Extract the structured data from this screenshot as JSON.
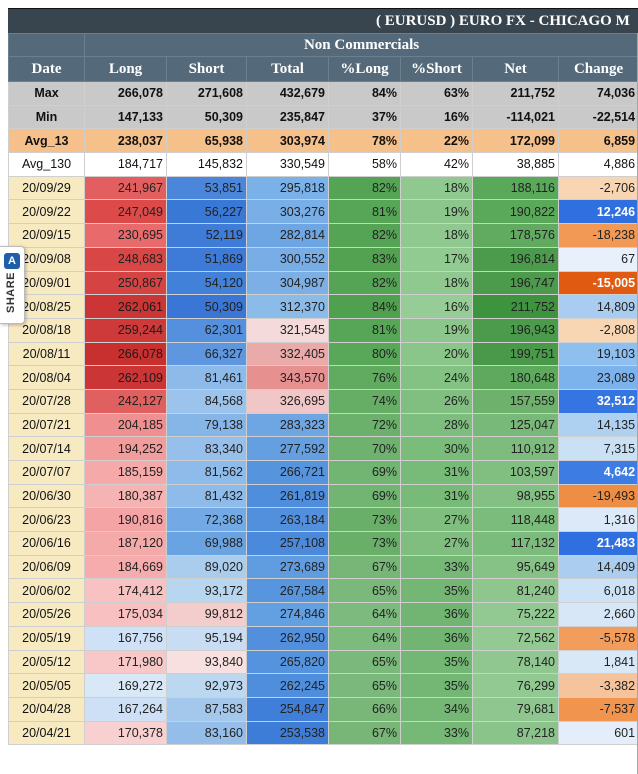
{
  "title": "( EURUSD ) EURO FX - CHICAGO M",
  "group_header": "Non Commercials",
  "columns": [
    "Date",
    "Long",
    "Short",
    "Total",
    "%Long",
    "%Short",
    "Net",
    "Change"
  ],
  "share": {
    "label": "SHARE",
    "logo": "A"
  },
  "summary_rows": [
    {
      "label": "Max",
      "cells": [
        "266,078",
        "271,608",
        "432,679",
        "84%",
        "63%",
        "211,752",
        "74,036"
      ]
    },
    {
      "label": "Min",
      "cells": [
        "147,133",
        "50,309",
        "235,847",
        "37%",
        "16%",
        "-114,021",
        "-22,514"
      ]
    },
    {
      "label": "Avg_13",
      "cells": [
        "238,037",
        "65,938",
        "303,974",
        "78%",
        "22%",
        "172,099",
        "6,859"
      ]
    },
    {
      "label": "Avg_130",
      "cells": [
        "184,717",
        "145,832",
        "330,549",
        "58%",
        "42%",
        "38,885",
        "4,886"
      ]
    }
  ],
  "rows": [
    {
      "date": "20/09/29",
      "cells": [
        "241,967",
        "53,851",
        "295,818",
        "82%",
        "18%",
        "188,116",
        "-2,706"
      ],
      "colors": [
        "#e35f5f",
        "#4b86db",
        "#7ab1e8",
        "#55a455",
        "#8fc98f",
        "#5aa85a",
        "#f8d6b3"
      ],
      "bold": [
        false,
        false,
        false,
        false,
        false,
        false,
        false
      ]
    },
    {
      "date": "20/09/22",
      "cells": [
        "247,049",
        "56,227",
        "303,276",
        "81%",
        "19%",
        "190,822",
        "12,246"
      ],
      "colors": [
        "#dc4a4a",
        "#3a78d6",
        "#7aaee6",
        "#57a657",
        "#8cc68c",
        "#5aa85a",
        "#2f6fe0"
      ],
      "bold": [
        false,
        false,
        false,
        false,
        false,
        false,
        true
      ]
    },
    {
      "date": "20/09/15",
      "cells": [
        "230,695",
        "52,119",
        "282,814",
        "82%",
        "18%",
        "178,576",
        "-18,238"
      ],
      "colors": [
        "#e86a6a",
        "#3f7cd8",
        "#6ea6e3",
        "#55a455",
        "#8fc98f",
        "#60ab60",
        "#f29a55"
      ],
      "bold": [
        false,
        false,
        false,
        false,
        false,
        false,
        false
      ]
    },
    {
      "date": "20/09/08",
      "cells": [
        "248,683",
        "51,869",
        "300,552",
        "83%",
        "17%",
        "196,814",
        "67"
      ],
      "colors": [
        "#d94646",
        "#3e7bd8",
        "#78ade6",
        "#52a252",
        "#92cb92",
        "#4c9b4c",
        "#e8f1fb"
      ],
      "bold": [
        false,
        false,
        false,
        false,
        false,
        false,
        false
      ]
    },
    {
      "date": "20/09/01",
      "cells": [
        "250,867",
        "54,120",
        "304,987",
        "82%",
        "18%",
        "196,747",
        "-15,005"
      ],
      "colors": [
        "#d64343",
        "#4281d9",
        "#7cafe6",
        "#55a455",
        "#8fc98f",
        "#4c9b4c",
        "#e05a12"
      ],
      "bold": [
        false,
        false,
        false,
        false,
        false,
        false,
        true
      ]
    },
    {
      "date": "20/08/25",
      "cells": [
        "262,061",
        "50,309",
        "312,370",
        "84%",
        "16%",
        "211,752",
        "14,809"
      ],
      "colors": [
        "#cc3535",
        "#3a76d5",
        "#8abbe9",
        "#4fa04f",
        "#96cd96",
        "#3e943e",
        "#a9cdf0"
      ],
      "bold": [
        false,
        false,
        false,
        false,
        false,
        false,
        false
      ]
    },
    {
      "date": "20/08/18",
      "cells": [
        "259,244",
        "62,301",
        "321,545",
        "81%",
        "19%",
        "196,943",
        "-2,808"
      ],
      "colors": [
        "#ce3a3a",
        "#5590de",
        "#f4dada",
        "#57a657",
        "#8cc68c",
        "#4c9b4c",
        "#f8d6b3"
      ],
      "bold": [
        false,
        false,
        false,
        false,
        false,
        false,
        false
      ]
    },
    {
      "date": "20/08/11",
      "cells": [
        "266,078",
        "66,327",
        "332,405",
        "80%",
        "20%",
        "199,751",
        "19,103"
      ],
      "colors": [
        "#c82f2f",
        "#5e97df",
        "#eaaaaa",
        "#59a859",
        "#8ac58a",
        "#4a994a",
        "#8fbfee"
      ],
      "bold": [
        false,
        false,
        false,
        false,
        false,
        false,
        false
      ]
    },
    {
      "date": "20/08/04",
      "cells": [
        "262,109",
        "81,461",
        "343,570",
        "76%",
        "24%",
        "180,648",
        "23,089"
      ],
      "colors": [
        "#cc3535",
        "#8ebae9",
        "#e69090",
        "#60ab60",
        "#84c284",
        "#5ea95e",
        "#7cb3ec"
      ],
      "bold": [
        false,
        false,
        false,
        false,
        false,
        false,
        false
      ]
    },
    {
      "date": "20/07/28",
      "cells": [
        "242,127",
        "84,568",
        "326,695",
        "74%",
        "26%",
        "157,559",
        "32,512"
      ],
      "colors": [
        "#e06060",
        "#9cc3ec",
        "#f0c6c6",
        "#66ae66",
        "#80bf80",
        "#6db16d",
        "#3575e2"
      ],
      "bold": [
        false,
        false,
        false,
        false,
        false,
        false,
        true
      ]
    },
    {
      "date": "20/07/21",
      "cells": [
        "204,185",
        "79,138",
        "283,323",
        "72%",
        "28%",
        "125,047",
        "14,135"
      ],
      "colors": [
        "#ef8f8f",
        "#86b5e8",
        "#6ea6e3",
        "#6bb06b",
        "#7dbd7d",
        "#78b878",
        "#aed0f1"
      ],
      "bold": [
        false,
        false,
        false,
        false,
        false,
        false,
        false
      ]
    },
    {
      "date": "20/07/14",
      "cells": [
        "194,252",
        "83,340",
        "277,592",
        "70%",
        "30%",
        "110,912",
        "7,315"
      ],
      "colors": [
        "#f39c9c",
        "#96bfeb",
        "#64a0e1",
        "#6fb26f",
        "#7abc7a",
        "#7ebc7e",
        "#c9e0f5"
      ],
      "bold": [
        false,
        false,
        false,
        false,
        false,
        false,
        false
      ]
    },
    {
      "date": "20/07/07",
      "cells": [
        "185,159",
        "81,562",
        "266,721",
        "69%",
        "31%",
        "103,597",
        "4,642"
      ],
      "colors": [
        "#f5a9a9",
        "#8fbbea",
        "#5694de",
        "#72b472",
        "#78ba78",
        "#81bf81",
        "#3c7ce3"
      ],
      "bold": [
        false,
        false,
        false,
        false,
        false,
        false,
        true
      ]
    },
    {
      "date": "20/06/30",
      "cells": [
        "180,387",
        "81,432",
        "261,819",
        "69%",
        "31%",
        "98,955",
        "-19,493"
      ],
      "colors": [
        "#f6b3b3",
        "#8fbbea",
        "#4f8edc",
        "#72b472",
        "#78ba78",
        "#84c084",
        "#ee8e45"
      ],
      "bold": [
        false,
        false,
        false,
        false,
        false,
        false,
        false
      ]
    },
    {
      "date": "20/06/23",
      "cells": [
        "190,816",
        "72,368",
        "263,184",
        "73%",
        "27%",
        "118,448",
        "1,316"
      ],
      "colors": [
        "#f4a4a4",
        "#73a9e4",
        "#5290dd",
        "#69af69",
        "#7fbe7f",
        "#7bbb7b",
        "#dbe9f8"
      ],
      "bold": [
        false,
        false,
        false,
        false,
        false,
        false,
        false
      ]
    },
    {
      "date": "20/06/16",
      "cells": [
        "187,120",
        "69,988",
        "257,108",
        "73%",
        "27%",
        "117,132",
        "21,483"
      ],
      "colors": [
        "#f5aaaa",
        "#6aa3e2",
        "#4a89db",
        "#69af69",
        "#7fbe7f",
        "#7bbb7b",
        "#2f6fe0"
      ],
      "bold": [
        false,
        false,
        false,
        false,
        false,
        false,
        true
      ]
    },
    {
      "date": "20/06/09",
      "cells": [
        "184,669",
        "89,020",
        "273,689",
        "67%",
        "33%",
        "95,649",
        "14,409"
      ],
      "colors": [
        "#f6acac",
        "#aacded",
        "#609ce0",
        "#77b677",
        "#76b876",
        "#86c186",
        "#abcef0"
      ],
      "bold": [
        false,
        false,
        false,
        false,
        false,
        false,
        false
      ]
    },
    {
      "date": "20/06/02",
      "cells": [
        "174,412",
        "93,172",
        "267,584",
        "65%",
        "35%",
        "81,240",
        "6,018"
      ],
      "colors": [
        "#f8c2c2",
        "#b8d6f0",
        "#5795de",
        "#7bb87b",
        "#74b674",
        "#8ec68e",
        "#cde2f6"
      ],
      "bold": [
        false,
        false,
        false,
        false,
        false,
        false,
        false
      ]
    },
    {
      "date": "20/05/26",
      "cells": [
        "175,034",
        "99,812",
        "274,846",
        "64%",
        "36%",
        "75,222",
        "2,660"
      ],
      "colors": [
        "#f8c0c0",
        "#f3cccc",
        "#62a0e1",
        "#7dba7d",
        "#72b572",
        "#92c892",
        "#d7e7f7"
      ],
      "bold": [
        false,
        false,
        false,
        false,
        false,
        false,
        false
      ]
    },
    {
      "date": "20/05/19",
      "cells": [
        "167,756",
        "95,194",
        "262,950",
        "64%",
        "36%",
        "72,562",
        "-5,578"
      ],
      "colors": [
        "#cfe1f6",
        "#c8dcf3",
        "#5290dd",
        "#7dba7d",
        "#72b572",
        "#94c994",
        "#f29d5c"
      ],
      "bold": [
        false,
        false,
        false,
        false,
        false,
        false,
        false
      ]
    },
    {
      "date": "20/05/12",
      "cells": [
        "171,980",
        "93,840",
        "265,820",
        "65%",
        "35%",
        "78,140",
        "1,841"
      ],
      "colors": [
        "#f8c8c8",
        "#f8e0e0",
        "#5693de",
        "#7bb87b",
        "#74b674",
        "#90c790",
        "#d9e8f7"
      ],
      "bold": [
        false,
        false,
        false,
        false,
        false,
        false,
        false
      ]
    },
    {
      "date": "20/05/05",
      "cells": [
        "169,272",
        "92,973",
        "262,245",
        "65%",
        "35%",
        "76,299",
        "-3,382"
      ],
      "colors": [
        "#d9e8f7",
        "#bcd8f1",
        "#4f8edc",
        "#7bb87b",
        "#74b674",
        "#92c892",
        "#f6c49c"
      ],
      "bold": [
        false,
        false,
        false,
        false,
        false,
        false,
        false
      ]
    },
    {
      "date": "20/04/28",
      "cells": [
        "167,264",
        "87,583",
        "254,847",
        "66%",
        "34%",
        "79,681",
        "-7,537"
      ],
      "colors": [
        "#cde0f5",
        "#a3c8ec",
        "#3f7fd9",
        "#79b779",
        "#75b775",
        "#8fc68f",
        "#f0944e"
      ],
      "bold": [
        false,
        false,
        false,
        false,
        false,
        false,
        false
      ]
    },
    {
      "date": "20/04/21",
      "cells": [
        "170,378",
        "83,160",
        "253,538",
        "67%",
        "33%",
        "87,218",
        "601"
      ],
      "colors": [
        "#f8d0d0",
        "#94bdea",
        "#3d7dd8",
        "#77b677",
        "#76b876",
        "#8ac48a",
        "#e3eefa"
      ],
      "bold": [
        false,
        false,
        false,
        false,
        false,
        false,
        false
      ]
    }
  ]
}
